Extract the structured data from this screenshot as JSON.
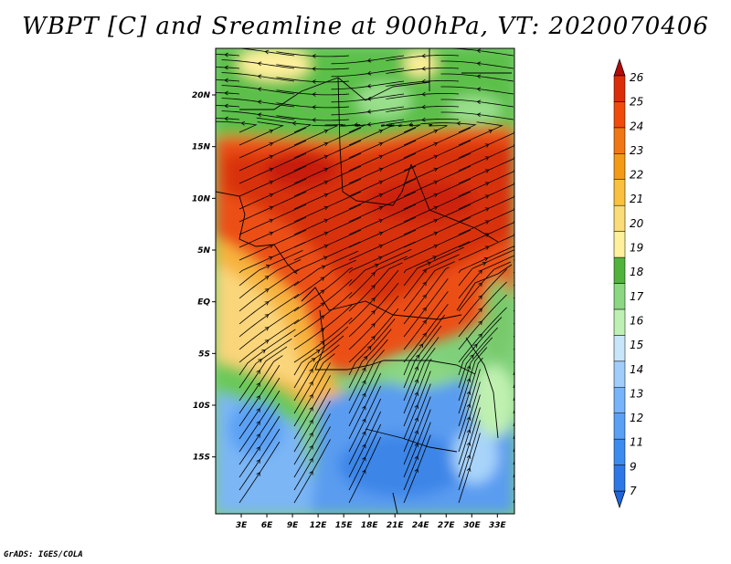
{
  "title": "WBPT [C] and Sreamline at 900hPa, VT: 2020070406",
  "footer": "GrADS: IGES/COLA",
  "map": {
    "lat_labels": [
      "20N",
      "15N",
      "10N",
      "5N",
      "EQ",
      "5S",
      "10S",
      "15S"
    ],
    "lon_labels": [
      "3E",
      "6E",
      "9E",
      "12E",
      "15E",
      "18E",
      "21E",
      "24E",
      "27E",
      "30E",
      "33E"
    ],
    "lat_range": [
      -20.5,
      24.5
    ],
    "lon_range": [
      0,
      35
    ]
  },
  "colorbar": {
    "labels": [
      "7",
      "9",
      "11",
      "12",
      "13",
      "14",
      "15",
      "16",
      "17",
      "18",
      "19",
      "20",
      "21",
      "22",
      "23",
      "24",
      "25",
      "26"
    ],
    "colors": [
      "#1e64dc",
      "#2d78e6",
      "#3c8cf0",
      "#5aa0f5",
      "#78b4fa",
      "#a0cdfa",
      "#c8e6fa",
      "#bef0b4",
      "#8cd782",
      "#50b43c",
      "#fff09b",
      "#fadc78",
      "#fac040",
      "#f59a14",
      "#f07814",
      "#f04b0a",
      "#dc2d0a",
      "#b40a0a"
    ]
  },
  "colors": {
    "background": "#ffffff",
    "streamline": "#000000"
  }
}
